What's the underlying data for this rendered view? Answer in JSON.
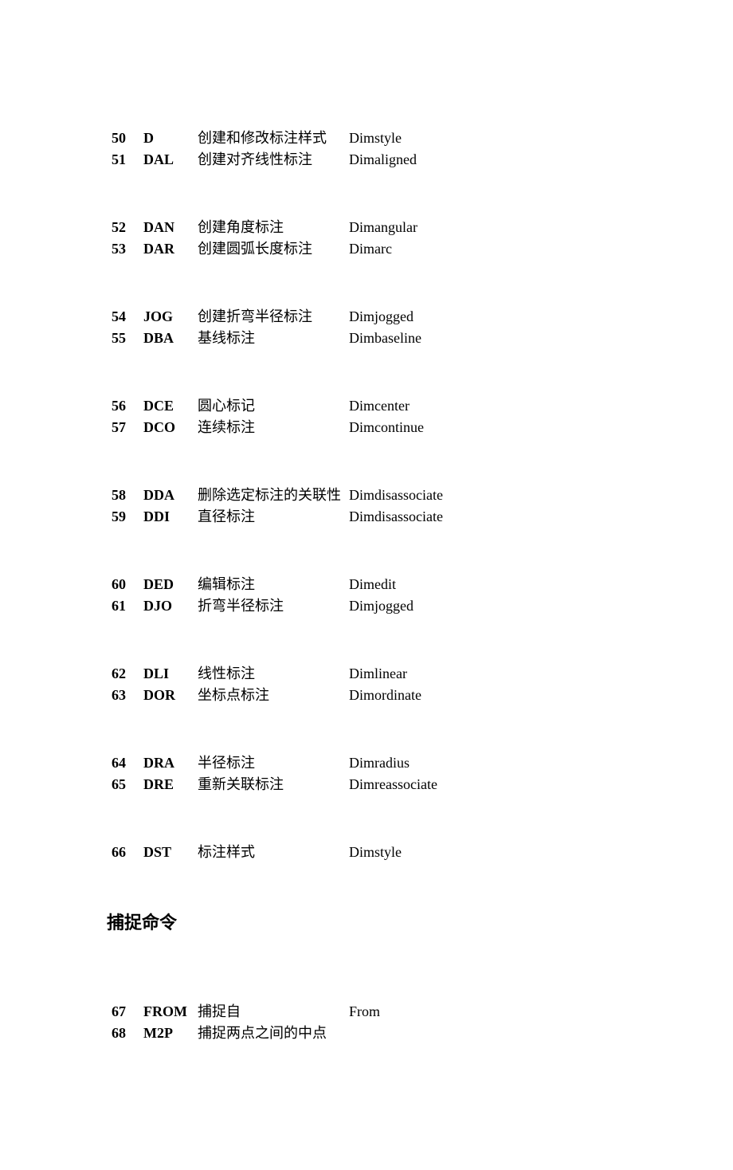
{
  "groups": [
    {
      "rows": [
        {
          "num": "50",
          "alias": "D",
          "desc": "创建和修改标注样式",
          "full": "Dimstyle"
        },
        {
          "num": "51",
          "alias": "DAL",
          "desc": "创建对齐线性标注",
          "full": "Dimaligned"
        }
      ]
    },
    {
      "rows": [
        {
          "num": "52",
          "alias": "DAN",
          "desc": "创建角度标注",
          "full": "Dimangular"
        },
        {
          "num": "53",
          "alias": "DAR",
          "desc": "创建圆弧长度标注",
          "full": "Dimarc"
        }
      ]
    },
    {
      "rows": [
        {
          "num": "54",
          "alias": "JOG",
          "desc": "创建折弯半径标注",
          "full": "Dimjogged"
        },
        {
          "num": "55",
          "alias": "DBA",
          "desc": "基线标注",
          "full": "Dimbaseline"
        }
      ]
    },
    {
      "rows": [
        {
          "num": "56",
          "alias": "DCE",
          "desc": "圆心标记",
          "full": "Dimcenter"
        },
        {
          "num": "57",
          "alias": "DCO",
          "desc": "连续标注",
          "full": "Dimcontinue"
        }
      ]
    },
    {
      "rows": [
        {
          "num": "58",
          "alias": "DDA",
          "desc": "删除选定标注的关联性",
          "full": "Dimdisassociate"
        },
        {
          "num": "59",
          "alias": "DDI",
          "desc": "直径标注",
          "full": "Dimdisassociate"
        }
      ]
    },
    {
      "rows": [
        {
          "num": "60",
          "alias": "DED",
          "desc": "编辑标注",
          "full": "Dimedit"
        },
        {
          "num": "61",
          "alias": "DJO",
          "desc": "折弯半径标注",
          "full": "Dimjogged"
        }
      ]
    },
    {
      "rows": [
        {
          "num": "62",
          "alias": "DLI",
          "desc": "线性标注",
          "full": "Dimlinear"
        },
        {
          "num": "63",
          "alias": "DOR",
          "desc": "坐标点标注",
          "full": "Dimordinate"
        }
      ]
    },
    {
      "rows": [
        {
          "num": "64",
          "alias": "DRA",
          "desc": "半径标注",
          "full": "Dimradius"
        },
        {
          "num": "65",
          "alias": "DRE",
          "desc": "重新关联标注",
          "full": "Dimreassociate"
        }
      ]
    },
    {
      "rows": [
        {
          "num": "66",
          "alias": "DST",
          "desc": "标注样式",
          "full": "Dimstyle"
        }
      ]
    }
  ],
  "section_heading": "捕捉命令",
  "groups2": [
    {
      "rows": [
        {
          "num": "67",
          "alias": "FROM",
          "desc": "捕捉自",
          "full": "From"
        },
        {
          "num": "68",
          "alias": "M2P",
          "desc": "捕捉两点之间的中点",
          "full": ""
        }
      ]
    }
  ]
}
